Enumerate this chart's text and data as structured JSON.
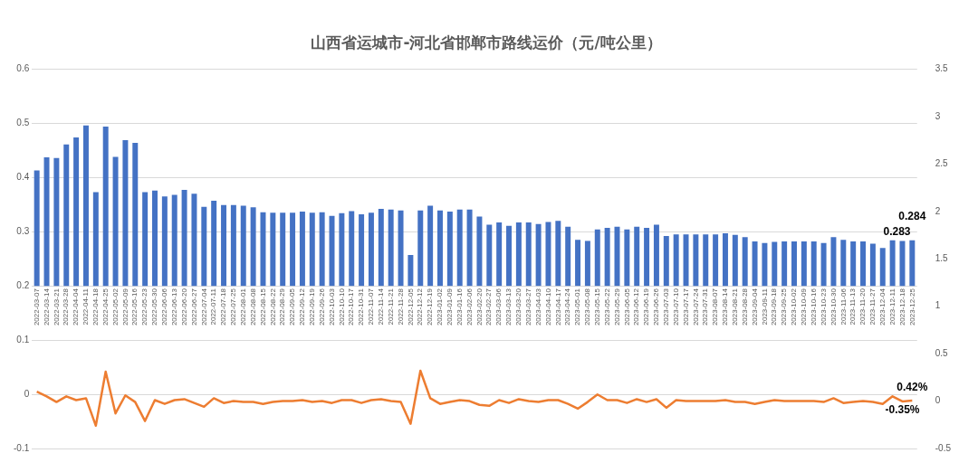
{
  "chart_data": {
    "type": "bar",
    "title": "山西省运城市-河北省邯郸市路线运价（元/吨公里）",
    "categories": [
      "2022-03-07",
      "2022-03-14",
      "2022-03-21",
      "2022-03-28",
      "2022-04-04",
      "2022-04-11",
      "2022-04-18",
      "2022-04-25",
      "2022-05-02",
      "2022-05-09",
      "2022-05-16",
      "2022-05-23",
      "2022-05-30",
      "2022-06-06",
      "2022-06-13",
      "2022-06-20",
      "2022-06-27",
      "2022-07-04",
      "2022-07-11",
      "2022-07-18",
      "2022-07-25",
      "2022-08-01",
      "2022-08-08",
      "2022-08-15",
      "2022-08-22",
      "2022-08-29",
      "2022-09-05",
      "2022-09-12",
      "2022-09-19",
      "2022-09-26",
      "2022-10-03",
      "2022-10-10",
      "2022-10-17",
      "2022-10-31",
      "2022-11-07",
      "2022-11-14",
      "2022-11-21",
      "2022-11-28",
      "2022-12-05",
      "2022-12-12",
      "2022-12-19",
      "2023-01-02",
      "2023-01-09",
      "2023-01-16",
      "2023-02-06",
      "2023-02-20",
      "2023-02-27",
      "2023-03-06",
      "2023-03-13",
      "2023-03-20",
      "2023-03-27",
      "2023-04-03",
      "2023-04-10",
      "2023-04-17",
      "2023-04-24",
      "2023-05-01",
      "2023-05-08",
      "2023-05-15",
      "2023-05-22",
      "2023-05-29",
      "2023-06-05",
      "2023-06-12",
      "2023-06-19",
      "2023-06-26",
      "2023-07-03",
      "2023-07-10",
      "2023-07-17",
      "2023-07-24",
      "2023-07-31",
      "2023-08-07",
      "2023-08-14",
      "2023-08-21",
      "2023-08-28",
      "2023-09-04",
      "2023-09-11",
      "2023-09-18",
      "2023-09-25",
      "2023-10-02",
      "2023-10-09",
      "2023-10-16",
      "2023-10-23",
      "2023-10-30",
      "2023-11-06",
      "2023-11-13",
      "2023-11-20",
      "2023-11-27",
      "2023-12-04",
      "2023-12-11",
      "2023-12-18",
      "2023-12-25"
    ],
    "series": [
      {
        "color": "#4472c4",
        "base": [
          0.2,
          0.2,
          0.2,
          0.2,
          0.2,
          0.2,
          0.2,
          0.2,
          0.2,
          0.2,
          0.2,
          0.2,
          0.2,
          0.2,
          0.2,
          0.2,
          0.2,
          0.2,
          0.2,
          0.2,
          0.2,
          0.2,
          0.2,
          0.2,
          0.2,
          0.2,
          0.2,
          0.2,
          0.2,
          0.2,
          0.2,
          0.2,
          0.2,
          0.2,
          0.2,
          0.2,
          0.2,
          0.2,
          0.2,
          0.2,
          0.2,
          0.2,
          0.2,
          0.2,
          0.2,
          0.2,
          0.2,
          0.2,
          0.2,
          0.2,
          0.2,
          0.2,
          0.2,
          0.2,
          0.2,
          0.2,
          0.2,
          0.2,
          0.2,
          0.2,
          0.2,
          0.2,
          0.2,
          0.2,
          0.2,
          0.2,
          0.2,
          0.2,
          0.2,
          0.2,
          0.2,
          0.2,
          0.2,
          0.2,
          0.2,
          0.2,
          0.2,
          0.2,
          0.2,
          0.2,
          0.2,
          0.2,
          0.2,
          0.2,
          0.2,
          0.2,
          0.2,
          0.2,
          0.2,
          0.2
        ],
        "values": [
          0.213,
          0.237,
          0.236,
          0.261,
          0.274,
          0.296,
          0.173,
          0.294,
          0.238,
          0.269,
          0.264,
          0.173,
          0.176,
          0.165,
          0.168,
          0.177,
          0.17,
          0.146,
          0.157,
          0.149,
          0.149,
          0.148,
          0.145,
          0.136,
          0.135,
          0.135,
          0.135,
          0.137,
          0.135,
          0.136,
          0.129,
          0.134,
          0.138,
          0.132,
          0.135,
          0.142,
          0.141,
          0.139,
          0.057,
          0.139,
          0.148,
          0.139,
          0.137,
          0.141,
          0.141,
          0.128,
          0.113,
          0.117,
          0.111,
          0.117,
          0.117,
          0.114,
          0.118,
          0.12,
          0.109,
          0.085,
          0.083,
          0.104,
          0.107,
          0.109,
          0.104,
          0.109,
          0.107,
          0.113,
          0.092,
          0.095,
          0.095,
          0.095,
          0.095,
          0.095,
          0.097,
          0.094,
          0.09,
          0.082,
          0.079,
          0.081,
          0.082,
          0.082,
          0.082,
          0.082,
          0.079,
          0.09,
          0.085,
          0.082,
          0.082,
          0.078,
          0.07,
          0.084,
          0.083,
          0.084
        ],
        "value_labels": [
          null,
          null,
          null,
          null,
          null,
          null,
          null,
          null,
          null,
          null,
          null,
          null,
          null,
          null,
          null,
          null,
          null,
          null,
          null,
          null,
          null,
          null,
          null,
          null,
          null,
          null,
          null,
          null,
          null,
          null,
          null,
          null,
          null,
          null,
          null,
          null,
          null,
          null,
          null,
          null,
          null,
          null,
          null,
          null,
          null,
          null,
          null,
          null,
          null,
          null,
          null,
          null,
          null,
          null,
          null,
          null,
          null,
          null,
          null,
          null,
          null,
          null,
          null,
          null,
          null,
          null,
          null,
          null,
          null,
          null,
          null,
          null,
          null,
          null,
          null,
          null,
          null,
          null,
          null,
          null,
          null,
          null,
          null,
          null,
          null,
          null,
          null,
          null,
          "0.283",
          "0.284"
        ]
      },
      {
        "type": "line",
        "axis": "y2",
        "color": "#ed7d31",
        "values": [
          0.1,
          0.05,
          -0.01,
          0.05,
          0.01,
          0.03,
          -0.26,
          0.31,
          -0.13,
          0.06,
          -0.01,
          -0.21,
          0.01,
          -0.03,
          0.01,
          0.02,
          -0.02,
          -0.06,
          0.03,
          -0.02,
          0.0,
          -0.01,
          -0.01,
          -0.03,
          -0.01,
          0.0,
          0.0,
          0.01,
          -0.01,
          0.0,
          -0.02,
          0.01,
          0.01,
          -0.02,
          0.01,
          0.02,
          0.0,
          -0.01,
          -0.24,
          0.32,
          0.03,
          -0.03,
          -0.01,
          0.01,
          0.0,
          -0.04,
          -0.05,
          0.01,
          -0.02,
          0.02,
          0.0,
          -0.01,
          0.01,
          0.01,
          -0.03,
          -0.08,
          -0.01,
          0.07,
          0.01,
          0.01,
          -0.02,
          0.02,
          -0.01,
          0.02,
          -0.07,
          0.01,
          0.0,
          0.0,
          0.0,
          0.0,
          0.01,
          -0.01,
          -0.01,
          -0.03,
          -0.01,
          0.01,
          0.0,
          0.0,
          0.0,
          0.0,
          -0.01,
          0.03,
          -0.02,
          -0.01,
          0.0,
          -0.01,
          -0.03,
          0.05,
          -0.0035,
          0.0042
        ],
        "value_labels": [
          null,
          null,
          null,
          null,
          null,
          null,
          null,
          null,
          null,
          null,
          null,
          null,
          null,
          null,
          null,
          null,
          null,
          null,
          null,
          null,
          null,
          null,
          null,
          null,
          null,
          null,
          null,
          null,
          null,
          null,
          null,
          null,
          null,
          null,
          null,
          null,
          null,
          null,
          null,
          null,
          null,
          null,
          null,
          null,
          null,
          null,
          null,
          null,
          null,
          null,
          null,
          null,
          null,
          null,
          null,
          null,
          null,
          null,
          null,
          null,
          null,
          null,
          null,
          null,
          null,
          null,
          null,
          null,
          null,
          null,
          null,
          null,
          null,
          null,
          null,
          null,
          null,
          null,
          null,
          null,
          null,
          null,
          null,
          null,
          null,
          null,
          null,
          null,
          "-0.35%",
          "0.42%"
        ]
      }
    ],
    "ylim": [
      -0.1,
      0.6
    ],
    "yticks": [
      -0.1,
      0,
      0.1,
      0.2,
      0.3,
      0.4,
      0.5,
      0.6
    ],
    "y2lim": [
      -0.5,
      3.5
    ],
    "y2ticks": [
      -0.5,
      0,
      0.5,
      1,
      1.5,
      2,
      2.5,
      3,
      3.5
    ],
    "grid": "y",
    "legend": false,
    "marker": "none",
    "line_style": "solid"
  }
}
